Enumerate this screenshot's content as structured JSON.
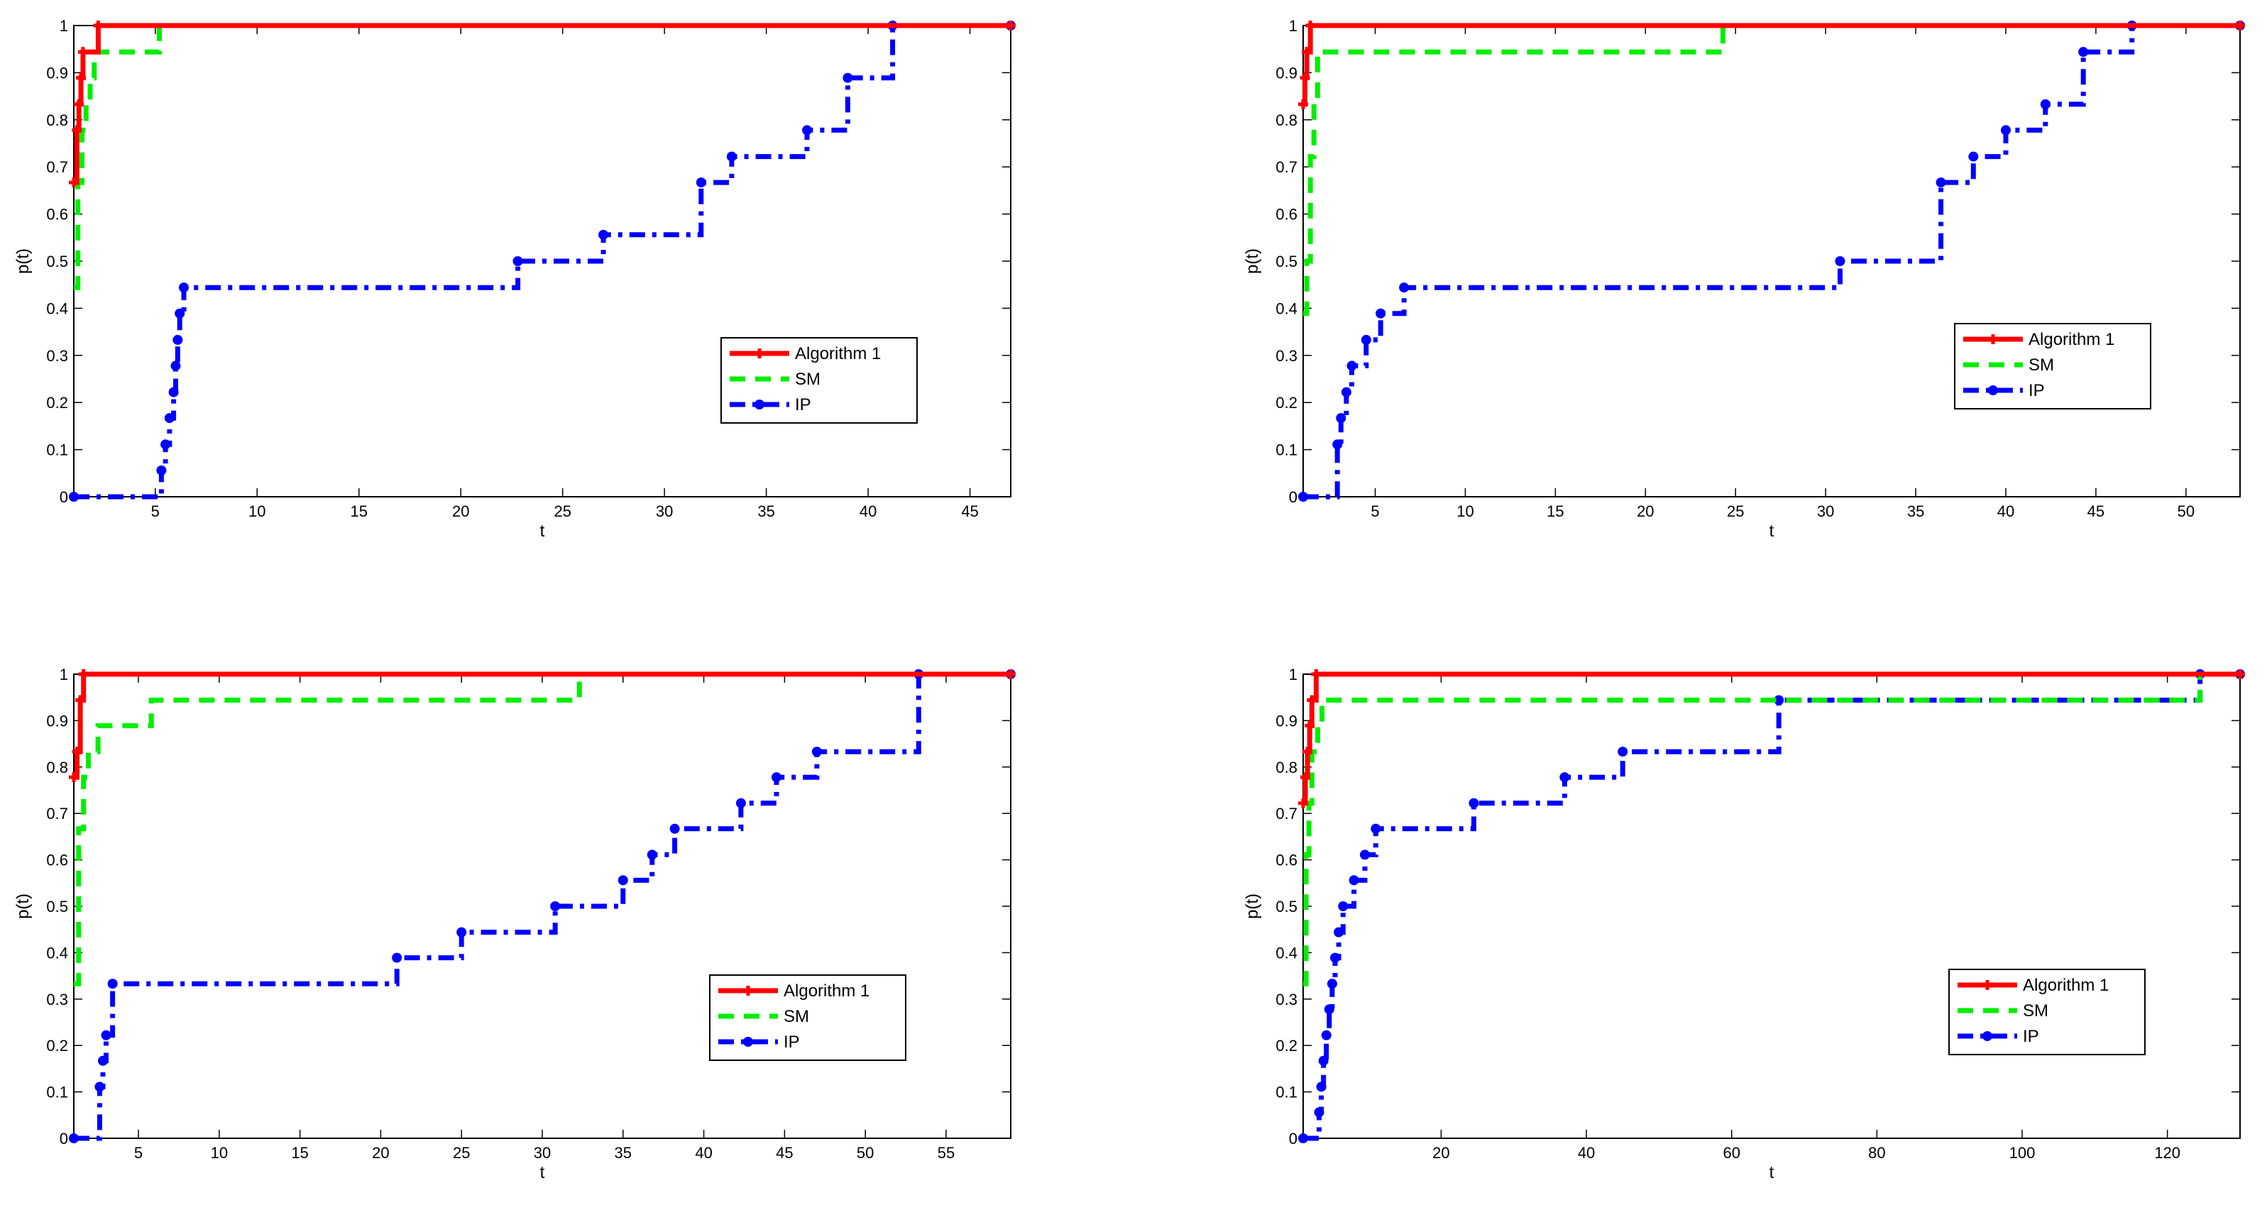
{
  "figure": {
    "title": ""
  },
  "chart_data": [
    {
      "type": "line",
      "title": "",
      "xlabel": "t",
      "ylabel": "p(t)",
      "xlim": [
        1,
        47
      ],
      "ylim": [
        0,
        1
      ],
      "x_ticks": [
        5,
        10,
        15,
        20,
        25,
        30,
        35,
        40,
        45
      ],
      "y_ticks": [
        0,
        0.1,
        0.2,
        0.3,
        0.4,
        0.5,
        0.6,
        0.7,
        0.8,
        0.9,
        1
      ],
      "x_tick_labels": [
        "5",
        "10",
        "15",
        "20",
        "25",
        "30",
        "35",
        "40",
        "45"
      ],
      "y_tick_labels": [
        "0",
        "0.1",
        "0.2",
        "0.3",
        "0.4",
        "0.5",
        "0.6",
        "0.7",
        "0.8",
        "0.9",
        "1"
      ],
      "legend": {
        "position": "lower-right",
        "entries": [
          "Algorithm 1",
          "SM",
          "IP"
        ]
      },
      "series": [
        {
          "name": "Algorithm 1",
          "color": "#ff0000",
          "style": "solid",
          "points": [
            [
              1,
              0.667
            ],
            [
              1.15,
              0.778
            ],
            [
              1.25,
              0.833
            ],
            [
              1.35,
              0.889
            ],
            [
              1.45,
              0.944
            ],
            [
              2.2,
              1.0
            ],
            [
              47,
              1.0
            ]
          ]
        },
        {
          "name": "SM",
          "color": "#00ee00",
          "style": "dashed",
          "points": [
            [
              1,
              0.444
            ],
            [
              1.2,
              0.667
            ],
            [
              1.4,
              0.778
            ],
            [
              1.6,
              0.833
            ],
            [
              1.8,
              0.889
            ],
            [
              2.0,
              0.944
            ],
            [
              5.2,
              1.0
            ],
            [
              47,
              1.0
            ]
          ]
        },
        {
          "name": "IP",
          "color": "#0000ff",
          "style": "dashdot",
          "points": [
            [
              1,
              0
            ],
            [
              5.3,
              0.056
            ],
            [
              5.5,
              0.111
            ],
            [
              5.7,
              0.167
            ],
            [
              5.9,
              0.222
            ],
            [
              6.0,
              0.278
            ],
            [
              6.1,
              0.333
            ],
            [
              6.2,
              0.389
            ],
            [
              6.4,
              0.444
            ],
            [
              22.8,
              0.5
            ],
            [
              27.0,
              0.556
            ],
            [
              31.8,
              0.667
            ],
            [
              33.3,
              0.722
            ],
            [
              37.0,
              0.778
            ],
            [
              39.0,
              0.889
            ],
            [
              41.2,
              1.0
            ],
            [
              47,
              1.0
            ]
          ]
        }
      ]
    },
    {
      "type": "line",
      "title": "",
      "xlabel": "t",
      "ylabel": "p(t)",
      "xlim": [
        1,
        53
      ],
      "ylim": [
        0,
        1
      ],
      "x_ticks": [
        5,
        10,
        15,
        20,
        25,
        30,
        35,
        40,
        45,
        50
      ],
      "y_ticks": [
        0,
        0.1,
        0.2,
        0.3,
        0.4,
        0.5,
        0.6,
        0.7,
        0.8,
        0.9,
        1
      ],
      "x_tick_labels": [
        "5",
        "10",
        "15",
        "20",
        "25",
        "30",
        "35",
        "40",
        "45",
        "50"
      ],
      "y_tick_labels": [
        "0",
        "0.1",
        "0.2",
        "0.3",
        "0.4",
        "0.5",
        "0.6",
        "0.7",
        "0.8",
        "0.9",
        "1"
      ],
      "legend": {
        "position": "lower-right",
        "entries": [
          "Algorithm 1",
          "SM",
          "IP"
        ]
      },
      "series": [
        {
          "name": "Algorithm 1",
          "color": "#ff0000",
          "style": "solid",
          "points": [
            [
              1,
              0.833
            ],
            [
              1.1,
              0.889
            ],
            [
              1.2,
              0.944
            ],
            [
              1.4,
              1.0
            ],
            [
              53,
              1.0
            ]
          ]
        },
        {
          "name": "SM",
          "color": "#00ee00",
          "style": "dashed",
          "points": [
            [
              1,
              0.389
            ],
            [
              1.2,
              0.5
            ],
            [
              1.4,
              0.722
            ],
            [
              1.6,
              0.833
            ],
            [
              1.8,
              0.944
            ],
            [
              24.3,
              1.0
            ],
            [
              53,
              1.0
            ]
          ]
        },
        {
          "name": "IP",
          "color": "#0000ff",
          "style": "dashdot",
          "points": [
            [
              1,
              0
            ],
            [
              2.9,
              0.111
            ],
            [
              3.1,
              0.167
            ],
            [
              3.4,
              0.222
            ],
            [
              3.7,
              0.278
            ],
            [
              4.5,
              0.333
            ],
            [
              5.3,
              0.389
            ],
            [
              6.6,
              0.444
            ],
            [
              30.8,
              0.5
            ],
            [
              36.4,
              0.667
            ],
            [
              38.2,
              0.722
            ],
            [
              40.0,
              0.778
            ],
            [
              42.2,
              0.833
            ],
            [
              44.3,
              0.944
            ],
            [
              47.0,
              1.0
            ],
            [
              53,
              1.0
            ]
          ]
        }
      ]
    },
    {
      "type": "line",
      "title": "",
      "xlabel": "t",
      "ylabel": "p(t)",
      "xlim": [
        1,
        59
      ],
      "ylim": [
        0,
        1
      ],
      "x_ticks": [
        5,
        10,
        15,
        20,
        25,
        30,
        35,
        40,
        45,
        50,
        55
      ],
      "y_ticks": [
        0,
        0.1,
        0.2,
        0.3,
        0.4,
        0.5,
        0.6,
        0.7,
        0.8,
        0.9,
        1
      ],
      "x_tick_labels": [
        "5",
        "10",
        "15",
        "20",
        "25",
        "30",
        "35",
        "40",
        "45",
        "50",
        "55"
      ],
      "y_tick_labels": [
        "0",
        "0.1",
        "0.2",
        "0.3",
        "0.4",
        "0.5",
        "0.6",
        "0.7",
        "0.8",
        "0.9",
        "1"
      ],
      "legend": {
        "position": "lower-right",
        "entries": [
          "Algorithm 1",
          "SM",
          "IP"
        ]
      },
      "series": [
        {
          "name": "Algorithm 1",
          "color": "#ff0000",
          "style": "solid",
          "points": [
            [
              1,
              0.778
            ],
            [
              1.2,
              0.833
            ],
            [
              1.4,
              0.944
            ],
            [
              1.6,
              1.0
            ],
            [
              59,
              1.0
            ]
          ]
        },
        {
          "name": "SM",
          "color": "#00ee00",
          "style": "dashed",
          "points": [
            [
              1,
              0.333
            ],
            [
              1.3,
              0.667
            ],
            [
              1.6,
              0.778
            ],
            [
              1.9,
              0.833
            ],
            [
              2.5,
              0.889
            ],
            [
              5.8,
              0.944
            ],
            [
              32.3,
              1.0
            ],
            [
              59,
              1.0
            ]
          ]
        },
        {
          "name": "IP",
          "color": "#0000ff",
          "style": "dashdot",
          "points": [
            [
              1,
              0
            ],
            [
              2.6,
              0.111
            ],
            [
              2.8,
              0.167
            ],
            [
              3.0,
              0.222
            ],
            [
              3.4,
              0.333
            ],
            [
              21.0,
              0.389
            ],
            [
              25.0,
              0.444
            ],
            [
              30.8,
              0.5
            ],
            [
              35.0,
              0.556
            ],
            [
              36.8,
              0.611
            ],
            [
              38.2,
              0.667
            ],
            [
              42.3,
              0.722
            ],
            [
              44.5,
              0.778
            ],
            [
              47.0,
              0.833
            ],
            [
              53.3,
              1.0
            ],
            [
              59,
              1.0
            ]
          ]
        }
      ]
    },
    {
      "type": "line",
      "title": "",
      "xlabel": "t",
      "ylabel": "p(t)",
      "xlim": [
        1,
        130
      ],
      "ylim": [
        0,
        1
      ],
      "x_ticks": [
        20,
        40,
        60,
        80,
        100,
        120
      ],
      "y_ticks": [
        0,
        0.1,
        0.2,
        0.3,
        0.4,
        0.5,
        0.6,
        0.7,
        0.8,
        0.9,
        1
      ],
      "x_tick_labels": [
        "20",
        "40",
        "60",
        "80",
        "100",
        "120"
      ],
      "y_tick_labels": [
        "0",
        "0.1",
        "0.2",
        "0.3",
        "0.4",
        "0.5",
        "0.6",
        "0.7",
        "0.8",
        "0.9",
        "1"
      ],
      "legend": {
        "position": "lower-right",
        "entries": [
          "Algorithm 1",
          "SM",
          "IP"
        ]
      },
      "series": [
        {
          "name": "Algorithm 1",
          "color": "#ff0000",
          "style": "solid",
          "points": [
            [
              1,
              0.722
            ],
            [
              1.3,
              0.778
            ],
            [
              1.6,
              0.833
            ],
            [
              1.9,
              0.889
            ],
            [
              2.2,
              0.944
            ],
            [
              2.8,
              1.0
            ],
            [
              130,
              1.0
            ]
          ]
        },
        {
          "name": "SM",
          "color": "#00ee00",
          "style": "dashed",
          "points": [
            [
              1,
              0.333
            ],
            [
              1.4,
              0.611
            ],
            [
              1.8,
              0.722
            ],
            [
              2.2,
              0.833
            ],
            [
              3.0,
              0.889
            ],
            [
              3.6,
              0.944
            ],
            [
              124.5,
              1.0
            ],
            [
              130,
              1.0
            ]
          ]
        },
        {
          "name": "IP",
          "color": "#0000ff",
          "style": "dashdot",
          "points": [
            [
              1,
              0
            ],
            [
              3.2,
              0.056
            ],
            [
              3.5,
              0.111
            ],
            [
              3.8,
              0.167
            ],
            [
              4.2,
              0.222
            ],
            [
              4.6,
              0.278
            ],
            [
              5.0,
              0.333
            ],
            [
              5.4,
              0.389
            ],
            [
              5.9,
              0.444
            ],
            [
              6.5,
              0.5
            ],
            [
              8.0,
              0.556
            ],
            [
              9.5,
              0.611
            ],
            [
              11.0,
              0.667
            ],
            [
              24.5,
              0.722
            ],
            [
              37.0,
              0.778
            ],
            [
              45.0,
              0.833
            ],
            [
              66.5,
              0.944
            ],
            [
              124.5,
              1.0
            ],
            [
              130,
              1.0
            ]
          ]
        }
      ]
    }
  ]
}
